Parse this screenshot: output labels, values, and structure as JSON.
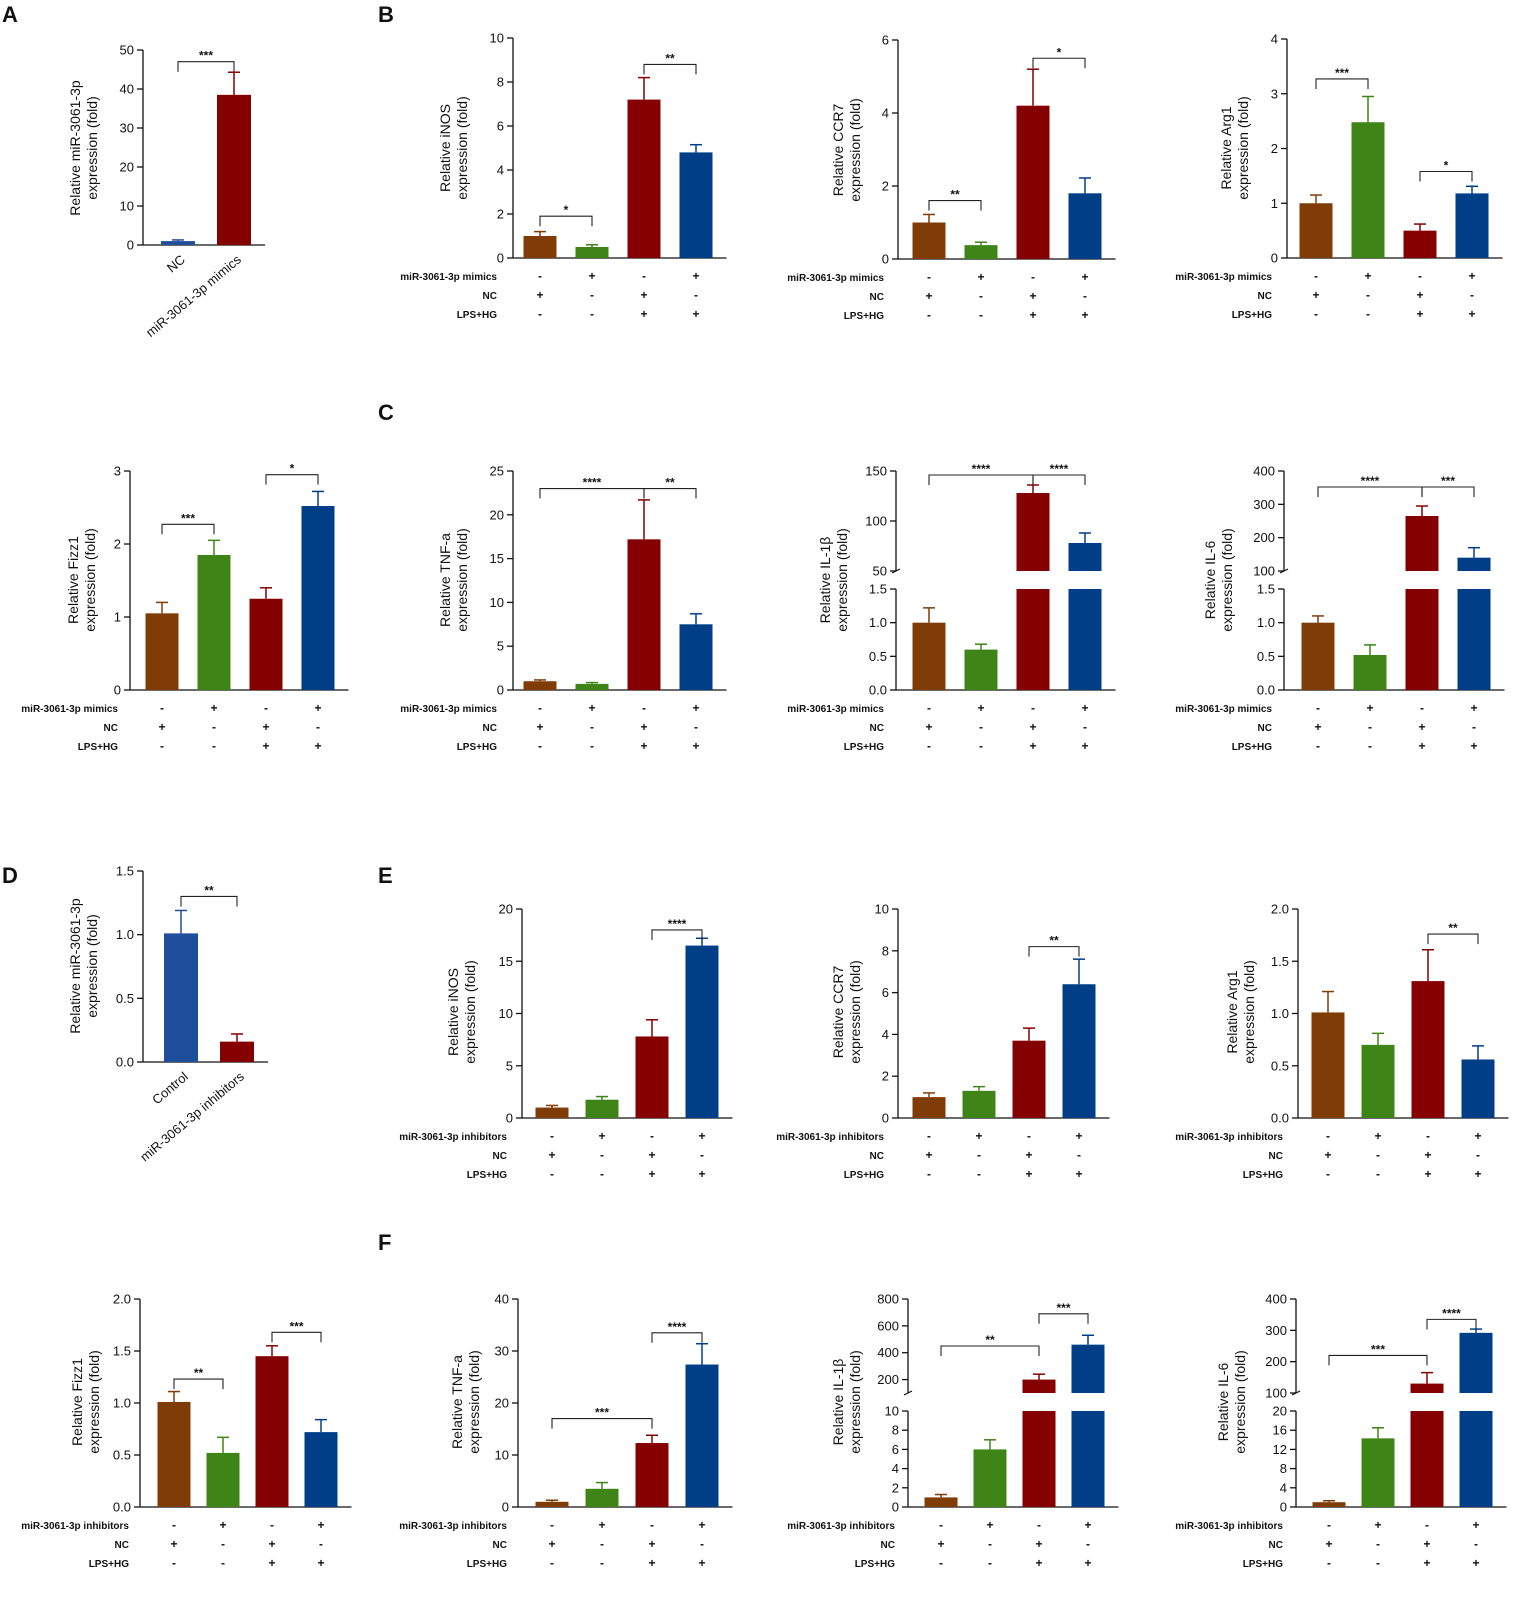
{
  "panel_letters": [
    "A",
    "B",
    "C",
    "D",
    "E",
    "F"
  ],
  "row_labels": {
    "mimics": "miR-3061-3p  mimics",
    "inhibitors": "miR-3061-3p  inhibitors",
    "nc": "NC",
    "lps": "LPS+HG"
  },
  "colors": {
    "brown": "#7F3C06",
    "green": "#3E8416",
    "red": "#850000",
    "blue": "#003E87",
    "blue_nc": "#1F4E9A",
    "axis": "#111111"
  },
  "chart_data": [
    {
      "id": "A",
      "type": "bar",
      "ylabel": [
        "Relative miR-3061-3p",
        "expression (fold)"
      ],
      "ylim": [
        0,
        50
      ],
      "yticks": [
        0,
        10,
        20,
        30,
        40,
        50
      ],
      "categories": [
        "NC",
        "miR-3061-3p mimics"
      ],
      "values": [
        1,
        38.5
      ],
      "errors": [
        0.3,
        5.8
      ],
      "colors": [
        "blue_nc",
        "red"
      ],
      "sig": [
        {
          "from": 0,
          "to": 1,
          "y": 47,
          "label": "***"
        }
      ]
    },
    {
      "id": "B1",
      "type": "bar",
      "ylabel": [
        "Relative iNOS",
        "expression (fold)"
      ],
      "ylim": [
        0,
        10
      ],
      "yticks": [
        0,
        2,
        4,
        6,
        8,
        10
      ],
      "values": [
        1.0,
        0.5,
        7.2,
        4.8
      ],
      "errors": [
        0.2,
        0.1,
        1.0,
        0.35
      ],
      "groups": {
        "treat": [
          "-",
          "+",
          "-",
          "+"
        ],
        "nc": [
          "+",
          "-",
          "+",
          "-"
        ],
        "lps": [
          "-",
          "-",
          "+",
          "+"
        ]
      },
      "rowkey": "mimics",
      "sig": [
        {
          "from": 0,
          "to": 1,
          "y": 1.9,
          "label": "*"
        },
        {
          "from": 2,
          "to": 3,
          "y": 8.8,
          "label": "**"
        }
      ]
    },
    {
      "id": "B2",
      "type": "bar",
      "ylabel": [
        "Relative CCR7",
        "expression (fold)"
      ],
      "ylim": [
        0,
        6
      ],
      "yticks": [
        0,
        2,
        4,
        6
      ],
      "values": [
        1.0,
        0.38,
        4.2,
        1.8
      ],
      "errors": [
        0.22,
        0.08,
        1.0,
        0.42
      ],
      "groups": {
        "treat": [
          "-",
          "+",
          "-",
          "+"
        ],
        "nc": [
          "+",
          "-",
          "+",
          "-"
        ],
        "lps": [
          "-",
          "-",
          "+",
          "+"
        ]
      },
      "rowkey": "mimics",
      "sig": [
        {
          "from": 0,
          "to": 1,
          "y": 1.6,
          "label": "**"
        },
        {
          "from": 2,
          "to": 3,
          "y": 5.5,
          "label": "*"
        }
      ]
    },
    {
      "id": "B3",
      "type": "bar",
      "ylabel": [
        "Relative Arg1",
        "expression (fold)"
      ],
      "ylim": [
        0,
        4
      ],
      "yticks": [
        0,
        1,
        2,
        3,
        4
      ],
      "values": [
        1.0,
        2.48,
        0.5,
        1.18
      ],
      "errors": [
        0.15,
        0.47,
        0.12,
        0.13
      ],
      "colors_default": true,
      "groups": {
        "treat": [
          "-",
          "+",
          "-",
          "+"
        ],
        "nc": [
          "+",
          "-",
          "+",
          "-"
        ],
        "lps": [
          "-",
          "-",
          "+",
          "+"
        ]
      },
      "rowkey": "mimics",
      "sig": [
        {
          "from": 0,
          "to": 1,
          "y": 3.27,
          "label": "***"
        },
        {
          "from": 2,
          "to": 3,
          "y": 1.58,
          "label": "*"
        }
      ]
    },
    {
      "id": "C1",
      "type": "bar",
      "ylabel": [
        "Relative Fizz1",
        "expression (fold)"
      ],
      "ylim": [
        0,
        3
      ],
      "yticks": [
        0,
        1,
        2,
        3
      ],
      "values": [
        1.05,
        1.85,
        1.25,
        2.52
      ],
      "errors": [
        0.15,
        0.2,
        0.15,
        0.2
      ],
      "groups": {
        "treat": [
          "-",
          "+",
          "-",
          "+"
        ],
        "nc": [
          "+",
          "-",
          "+",
          "-"
        ],
        "lps": [
          "-",
          "-",
          "+",
          "+"
        ]
      },
      "rowkey": "mimics",
      "sig": [
        {
          "from": 0,
          "to": 1,
          "y": 2.27,
          "label": "***"
        },
        {
          "from": 2,
          "to": 3,
          "y": 2.95,
          "label": "*"
        }
      ]
    },
    {
      "id": "C2",
      "type": "bar",
      "ylabel": [
        "Relative TNF-a",
        "expression (fold)"
      ],
      "ylim": [
        0,
        25
      ],
      "yticks": [
        0,
        5,
        10,
        15,
        20,
        25
      ],
      "values": [
        1.0,
        0.7,
        17.2,
        7.5
      ],
      "errors": [
        0.15,
        0.15,
        4.5,
        1.2
      ],
      "groups": {
        "treat": [
          "-",
          "+",
          "-",
          "+"
        ],
        "nc": [
          "+",
          "-",
          "+",
          "-"
        ],
        "lps": [
          "-",
          "-",
          "+",
          "+"
        ]
      },
      "rowkey": "mimics",
      "sig": [
        {
          "from": 0,
          "to": 2,
          "y": 23,
          "label": "****"
        },
        {
          "from": 2,
          "to": 3,
          "y": 23,
          "label": "**"
        }
      ]
    },
    {
      "id": "C3",
      "type": "bar",
      "ylabel": [
        "Relative IL-1β",
        "expression (fold)"
      ],
      "broken": {
        "lower": [
          0,
          1.5
        ],
        "upper": [
          50,
          150
        ],
        "lower_ticks": [
          0.0,
          0.5,
          1.0,
          1.5
        ],
        "upper_ticks": [
          50,
          100,
          150
        ]
      },
      "values": [
        1.0,
        0.6,
        128,
        78
      ],
      "errors": [
        0.22,
        0.08,
        8,
        10
      ],
      "groups": {
        "treat": [
          "-",
          "+",
          "-",
          "+"
        ],
        "nc": [
          "+",
          "-",
          "+",
          "-"
        ],
        "lps": [
          "-",
          "-",
          "+",
          "+"
        ]
      },
      "rowkey": "mimics",
      "sig": [
        {
          "from": 0,
          "to": 2,
          "y": 146,
          "label": "****"
        },
        {
          "from": 2,
          "to": 3,
          "y": 146,
          "label": "****"
        }
      ]
    },
    {
      "id": "C4",
      "type": "bar",
      "ylabel": [
        "Relative IL-6",
        "expression (fold)"
      ],
      "broken": {
        "lower": [
          0,
          1.5
        ],
        "upper": [
          100,
          400
        ],
        "lower_ticks": [
          0.0,
          0.5,
          1.0,
          1.5
        ],
        "upper_ticks": [
          100,
          200,
          300,
          400
        ]
      },
      "values": [
        1.0,
        0.52,
        265,
        140
      ],
      "errors": [
        0.1,
        0.15,
        30,
        30
      ],
      "groups": {
        "treat": [
          "-",
          "+",
          "-",
          "+"
        ],
        "nc": [
          "+",
          "-",
          "+",
          "-"
        ],
        "lps": [
          "-",
          "-",
          "+",
          "+"
        ]
      },
      "rowkey": "mimics",
      "sig": [
        {
          "from": 0,
          "to": 2,
          "y": 352,
          "label": "****"
        },
        {
          "from": 2,
          "to": 3,
          "y": 352,
          "label": "***"
        }
      ]
    },
    {
      "id": "D",
      "type": "bar",
      "ylabel": [
        "Relative miR-3061-3p",
        "expression (fold)"
      ],
      "ylim": [
        0,
        1.5
      ],
      "yticks": [
        0.0,
        0.5,
        1.0,
        1.5
      ],
      "categories": [
        "Control",
        "miR-3061-3p inhibitors"
      ],
      "values": [
        1.01,
        0.16
      ],
      "errors": [
        0.18,
        0.06
      ],
      "colors": [
        "blue_nc",
        "red"
      ],
      "sig": [
        {
          "from": 0,
          "to": 1,
          "y": 1.3,
          "label": "**"
        }
      ]
    },
    {
      "id": "E1",
      "type": "bar",
      "ylabel": [
        "Relative iNOS",
        "expression (fold)"
      ],
      "ylim": [
        0,
        20
      ],
      "yticks": [
        0,
        5,
        10,
        15,
        20
      ],
      "values": [
        1.0,
        1.75,
        7.8,
        16.5
      ],
      "errors": [
        0.2,
        0.3,
        1.6,
        0.7
      ],
      "groups": {
        "treat": [
          "-",
          "+",
          "-",
          "+"
        ],
        "nc": [
          "+",
          "-",
          "+",
          "-"
        ],
        "lps": [
          "-",
          "-",
          "+",
          "+"
        ]
      },
      "rowkey": "inhibitors",
      "sig": [
        {
          "from": 2,
          "to": 3,
          "y": 18.0,
          "label": "****"
        }
      ]
    },
    {
      "id": "E2",
      "type": "bar",
      "ylabel": [
        "Relative CCR7",
        "expression (fold)"
      ],
      "ylim": [
        0,
        10
      ],
      "yticks": [
        0,
        2,
        4,
        6,
        8,
        10
      ],
      "values": [
        1.0,
        1.3,
        3.7,
        6.4
      ],
      "errors": [
        0.2,
        0.2,
        0.6,
        1.2
      ],
      "groups": {
        "treat": [
          "-",
          "+",
          "-",
          "+"
        ],
        "nc": [
          "+",
          "-",
          "+",
          "-"
        ],
        "lps": [
          "-",
          "-",
          "+",
          "+"
        ]
      },
      "rowkey": "inhibitors",
      "sig": [
        {
          "from": 2,
          "to": 3,
          "y": 8.2,
          "label": "**"
        }
      ]
    },
    {
      "id": "E3",
      "type": "bar",
      "ylabel": [
        "Relative Arg1",
        "expression (fold)"
      ],
      "ylim": [
        0,
        2.0
      ],
      "yticks": [
        0.0,
        0.5,
        1.0,
        1.5,
        2.0
      ],
      "values": [
        1.01,
        0.7,
        1.31,
        0.56
      ],
      "errors": [
        0.2,
        0.11,
        0.3,
        0.13
      ],
      "groups": {
        "treat": [
          "-",
          "+",
          "-",
          "+"
        ],
        "nc": [
          "+",
          "-",
          "+",
          "-"
        ],
        "lps": [
          "-",
          "-",
          "+",
          "+"
        ]
      },
      "rowkey": "inhibitors",
      "sig": [
        {
          "from": 2,
          "to": 3,
          "y": 1.76,
          "label": "**"
        }
      ]
    },
    {
      "id": "F1",
      "type": "bar",
      "ylabel": [
        "Relative Fizz1",
        "expression (fold)"
      ],
      "ylim": [
        0,
        2.0
      ],
      "yticks": [
        0.0,
        0.5,
        1.0,
        1.5,
        2.0
      ],
      "values": [
        1.01,
        0.52,
        1.45,
        0.72
      ],
      "errors": [
        0.1,
        0.15,
        0.1,
        0.12
      ],
      "groups": {
        "treat": [
          "-",
          "+",
          "-",
          "+"
        ],
        "nc": [
          "+",
          "-",
          "+",
          "-"
        ],
        "lps": [
          "-",
          "-",
          "+",
          "+"
        ]
      },
      "rowkey": "inhibitors",
      "sig": [
        {
          "from": 0,
          "to": 1,
          "y": 1.23,
          "label": "**"
        },
        {
          "from": 2,
          "to": 3,
          "y": 1.68,
          "label": "***"
        }
      ]
    },
    {
      "id": "F2",
      "type": "bar",
      "ylabel": [
        "Relative TNF-a",
        "expression (fold)"
      ],
      "ylim": [
        0,
        40
      ],
      "yticks": [
        0,
        10,
        20,
        30,
        40
      ],
      "values": [
        1.0,
        3.5,
        12.3,
        27.4
      ],
      "errors": [
        0.3,
        1.2,
        1.5,
        4.0
      ],
      "groups": {
        "treat": [
          "-",
          "+",
          "-",
          "+"
        ],
        "nc": [
          "+",
          "-",
          "+",
          "-"
        ],
        "lps": [
          "-",
          "-",
          "+",
          "+"
        ]
      },
      "rowkey": "inhibitors",
      "sig": [
        {
          "from": 0,
          "to": 2,
          "y": 17.0,
          "label": "***"
        },
        {
          "from": 2,
          "to": 3,
          "y": 33.5,
          "label": "****"
        }
      ]
    },
    {
      "id": "F3",
      "type": "bar",
      "ylabel": [
        "Relative IL-1β",
        "expression (fold)"
      ],
      "broken": {
        "lower": [
          0,
          10
        ],
        "upper": [
          100,
          800
        ],
        "lower_ticks": [
          0,
          2,
          4,
          6,
          8,
          10
        ],
        "upper_ticks": [
          200,
          400,
          600,
          800
        ],
        "upper_label_min": 200
      },
      "values": [
        1.0,
        6.0,
        200,
        460
      ],
      "errors": [
        0.3,
        1.0,
        40,
        70
      ],
      "groups": {
        "treat": [
          "-",
          "+",
          "-",
          "+"
        ],
        "nc": [
          "+",
          "-",
          "+",
          "-"
        ],
        "lps": [
          "-",
          "-",
          "+",
          "+"
        ]
      },
      "rowkey": "inhibitors",
      "sig": [
        {
          "from": 0,
          "to": 2,
          "y": 450,
          "label": "**"
        },
        {
          "from": 2,
          "to": 3,
          "y": 690,
          "label": "***"
        }
      ]
    },
    {
      "id": "F4",
      "type": "bar",
      "ylabel": [
        "Relative IL-6",
        "expression (fold)"
      ],
      "broken": {
        "lower": [
          0,
          20
        ],
        "upper": [
          100,
          400
        ],
        "lower_ticks": [
          0,
          4,
          8,
          12,
          16,
          20
        ],
        "upper_ticks": [
          100,
          200,
          300,
          400
        ]
      },
      "values": [
        1.0,
        14.3,
        130,
        292
      ],
      "errors": [
        0.3,
        2.2,
        35,
        12
      ],
      "groups": {
        "treat": [
          "-",
          "+",
          "-",
          "+"
        ],
        "nc": [
          "+",
          "-",
          "+",
          "-"
        ],
        "lps": [
          "-",
          "-",
          "+",
          "+"
        ]
      },
      "rowkey": "inhibitors",
      "sig": [
        {
          "from": 0,
          "to": 2,
          "y": 220,
          "label": "***"
        },
        {
          "from": 2,
          "to": 3,
          "y": 335,
          "label": "****"
        }
      ]
    }
  ]
}
